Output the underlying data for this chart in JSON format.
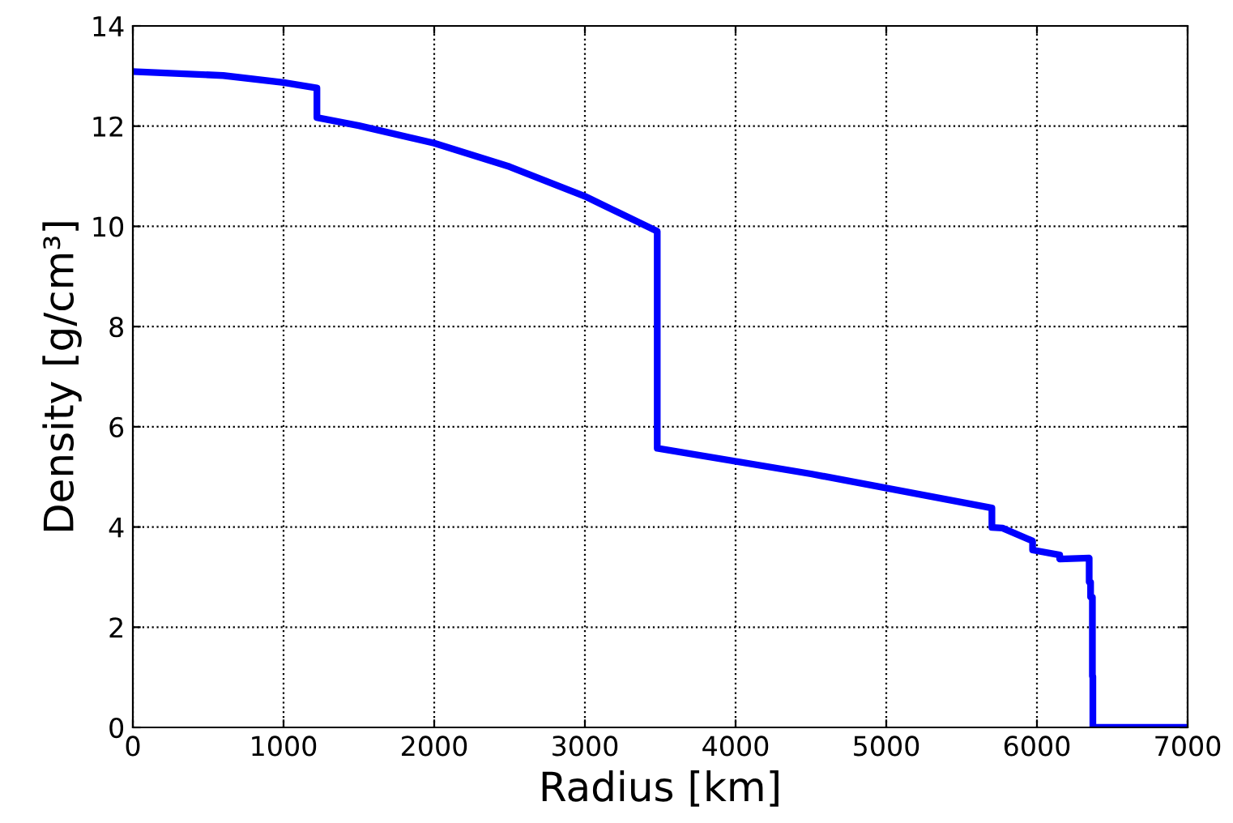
{
  "chart_data": {
    "type": "line",
    "xlabel": "Radius [km]",
    "ylabel": "Density [g/cm³]",
    "xlim": [
      0,
      7000
    ],
    "ylim": [
      0,
      14
    ],
    "xticks": [
      0,
      1000,
      2000,
      3000,
      4000,
      5000,
      6000,
      7000
    ],
    "yticks": [
      0,
      2,
      4,
      6,
      8,
      10,
      12,
      14
    ],
    "grid": true,
    "marker": "none",
    "line_style": "solid",
    "series": [
      {
        "color": "#0000ff",
        "x": [
          0,
          600,
          1000,
          1221.5,
          1221.5,
          1500,
          2000,
          2500,
          3000,
          3480,
          3480,
          4500,
          5701,
          5701,
          5771,
          5971,
          5971,
          6151,
          6151,
          6346.6,
          6346.6,
          6356,
          6356,
          6368,
          6368,
          6371,
          6371,
          7000
        ],
        "values": [
          13.09,
          13.01,
          12.87,
          12.76,
          12.17,
          12.01,
          11.66,
          11.19,
          10.6,
          9.9,
          5.57,
          5.06,
          4.38,
          3.99,
          3.98,
          3.72,
          3.54,
          3.44,
          3.36,
          3.38,
          2.9,
          2.9,
          2.6,
          2.6,
          1.02,
          1.02,
          0,
          0
        ]
      }
    ]
  }
}
